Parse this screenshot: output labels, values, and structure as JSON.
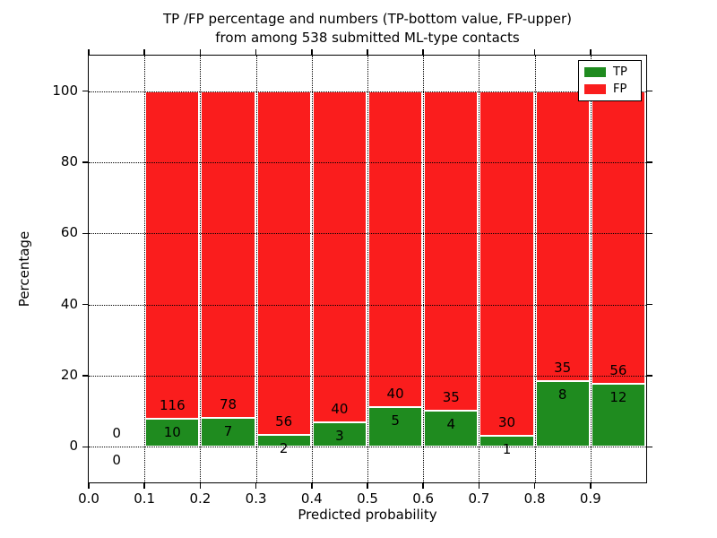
{
  "title": {
    "line1": "TP /FP percentage and numbers (TP-bottom value, FP-upper)",
    "line2": "from among 538 submitted ML-type contacts"
  },
  "axes": {
    "xlabel": "Predicted probability",
    "ylabel": "Percentage"
  },
  "legend": [
    {
      "label": "TP",
      "color": "#1f8b1f"
    },
    {
      "label": "FP",
      "color": "#fa1d1d"
    }
  ],
  "chart_data": {
    "type": "bar",
    "stacked": true,
    "normalization": "each bar scaled to 100 percent; labels show raw counts (FP upper, TP lower)",
    "title": "TP /FP percentage and numbers (TP-bottom value, FP-upper) from among 538 submitted ML-type contacts",
    "xlabel": "Predicted probability",
    "ylabel": "Percentage",
    "xlim": [
      0.0,
      1.0
    ],
    "ylim": [
      -10,
      110
    ],
    "grid": {
      "visible": true,
      "style": "dotted",
      "color": "#000000"
    },
    "legend_position": "upper right",
    "bin_width": 0.1,
    "bin_starts": [
      0.0,
      0.1,
      0.2,
      0.3,
      0.4,
      0.5,
      0.6,
      0.7,
      0.8,
      0.9
    ],
    "x_ticks": [
      {
        "label": "0.0",
        "value": 0.0
      },
      {
        "label": "0.1",
        "value": 0.1
      },
      {
        "label": "0.2",
        "value": 0.2
      },
      {
        "label": "0.3",
        "value": 0.3
      },
      {
        "label": "0.4",
        "value": 0.4
      },
      {
        "label": "0.5",
        "value": 0.5
      },
      {
        "label": "0.6",
        "value": 0.6
      },
      {
        "label": "0.7",
        "value": 0.7
      },
      {
        "label": "0.8",
        "value": 0.8
      },
      {
        "label": "0.9",
        "value": 0.9
      }
    ],
    "y_ticks": [
      0,
      20,
      40,
      60,
      80,
      100
    ],
    "series": [
      {
        "name": "TP",
        "color": "#1f8b1f",
        "counts": [
          0,
          10,
          7,
          2,
          3,
          5,
          4,
          1,
          8,
          12
        ]
      },
      {
        "name": "FP",
        "color": "#fa1d1d",
        "counts": [
          0,
          116,
          78,
          56,
          40,
          40,
          35,
          30,
          35,
          56
        ]
      }
    ],
    "tp_percent_heights": [
      0,
      7.94,
      8.24,
      3.45,
      6.98,
      11.11,
      10.26,
      3.23,
      18.6,
      17.65
    ],
    "total_contacts": 538
  }
}
